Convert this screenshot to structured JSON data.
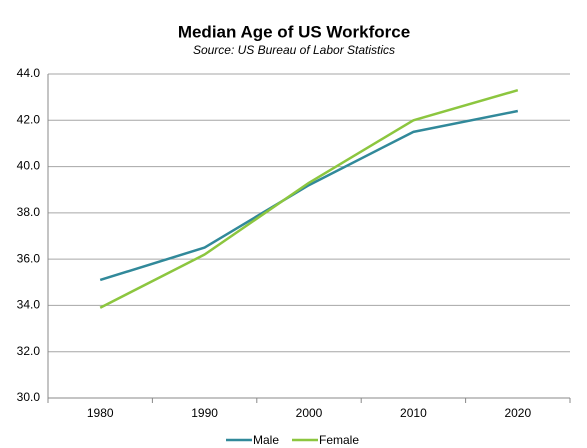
{
  "chart_data": {
    "type": "line",
    "title": "Median Age of US Workforce",
    "subtitle": "Source: US Bureau of Labor Statistics",
    "categories": [
      "1980",
      "1990",
      "2000",
      "2010",
      "2020"
    ],
    "series": [
      {
        "name": "Male",
        "color": "#31899a",
        "values": [
          35.1,
          36.5,
          39.2,
          41.5,
          42.4
        ]
      },
      {
        "name": "Female",
        "color": "#8cc63f",
        "values": [
          33.9,
          36.2,
          39.3,
          42.0,
          43.3
        ]
      }
    ],
    "ylim": [
      30,
      44
    ],
    "yticks": [
      {
        "value": 30,
        "label": "30.0"
      },
      {
        "value": 32,
        "label": "32.0"
      },
      {
        "value": 34,
        "label": "34.0"
      },
      {
        "value": 36,
        "label": "36.0"
      },
      {
        "value": 38,
        "label": "38.0"
      },
      {
        "value": 40,
        "label": "40.0"
      },
      {
        "value": 42,
        "label": "42.0"
      },
      {
        "value": 44,
        "label": "44.0"
      }
    ],
    "grid": true,
    "legend": "bottom"
  }
}
